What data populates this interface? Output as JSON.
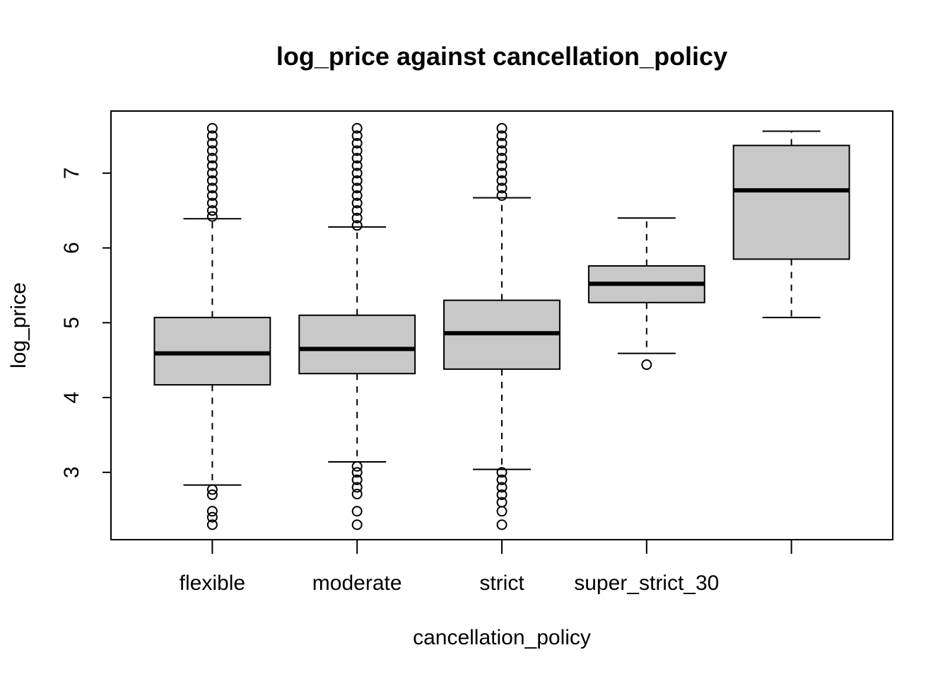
{
  "chart_data": {
    "type": "boxplot",
    "title": "log_price against cancellation_policy",
    "xlabel": "cancellation_policy",
    "ylabel": "log_price",
    "ylim": [
      2.1,
      7.83
    ],
    "yticks": [
      3,
      4,
      5,
      6,
      7
    ],
    "categories": [
      "flexible",
      "moderate",
      "strict",
      "super_strict_30",
      ""
    ],
    "colors": {
      "box_fill": "#c8c8c8",
      "stroke": "#000000",
      "background": "#ffffff"
    },
    "grid": false,
    "boxes": [
      {
        "category": "flexible",
        "whisker_low": 2.83,
        "q1": 4.17,
        "median": 4.59,
        "q3": 5.07,
        "whisker_high": 6.39,
        "outliers": [
          2.3,
          2.4,
          2.48,
          2.7,
          2.77,
          6.42,
          6.5,
          6.6,
          6.7,
          6.8,
          6.9,
          7.0,
          7.1,
          7.2,
          7.3,
          7.4,
          7.5,
          7.6
        ]
      },
      {
        "category": "moderate",
        "whisker_low": 3.14,
        "q1": 4.32,
        "median": 4.65,
        "q3": 5.1,
        "whisker_high": 6.28,
        "outliers": [
          2.3,
          2.48,
          2.71,
          2.8,
          2.9,
          3.0,
          3.08,
          6.3,
          6.4,
          6.5,
          6.6,
          6.7,
          6.8,
          6.9,
          7.0,
          7.1,
          7.2,
          7.3,
          7.4,
          7.5,
          7.6
        ]
      },
      {
        "category": "strict",
        "whisker_low": 3.04,
        "q1": 4.38,
        "median": 4.86,
        "q3": 5.3,
        "whisker_high": 6.67,
        "outliers": [
          2.3,
          2.48,
          2.6,
          2.7,
          2.8,
          2.9,
          3.0,
          6.7,
          6.8,
          6.9,
          7.0,
          7.1,
          7.2,
          7.3,
          7.4,
          7.5,
          7.6
        ]
      },
      {
        "category": "super_strict_30",
        "whisker_low": 4.59,
        "q1": 5.27,
        "median": 5.52,
        "q3": 5.76,
        "whisker_high": 6.4,
        "outliers": [
          4.44
        ]
      },
      {
        "category": "",
        "whisker_low": 5.07,
        "q1": 5.85,
        "median": 6.77,
        "q3": 7.37,
        "whisker_high": 7.56,
        "outliers": []
      }
    ]
  }
}
